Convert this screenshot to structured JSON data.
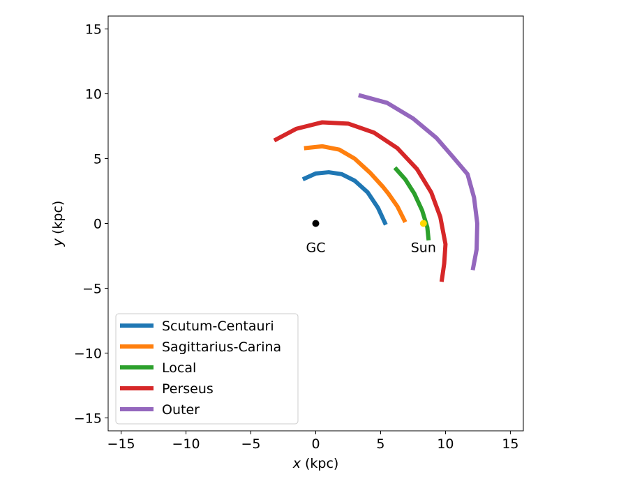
{
  "chart_data": {
    "type": "line",
    "xlabel_var": "x",
    "xlabel_unit": " (kpc)",
    "ylabel_var": "y",
    "ylabel_unit": " (kpc)",
    "xlim": [
      -16,
      16
    ],
    "ylim": [
      -16,
      16
    ],
    "xticks": [
      -15,
      -10,
      -5,
      0,
      5,
      10,
      15
    ],
    "yticks": [
      -15,
      -10,
      -5,
      0,
      5,
      10,
      15
    ],
    "legend_position": "lower-left",
    "series": [
      {
        "name": "Scutum-Centauri",
        "color": "#1f77b4",
        "points": [
          [
            -1.0,
            3.4
          ],
          [
            0.0,
            3.85
          ],
          [
            1.0,
            3.95
          ],
          [
            2.0,
            3.8
          ],
          [
            3.0,
            3.3
          ],
          [
            4.0,
            2.4
          ],
          [
            4.8,
            1.2
          ],
          [
            5.4,
            -0.1
          ]
        ]
      },
      {
        "name": "Sagittarius-Carina",
        "color": "#ff7f0e",
        "points": [
          [
            -0.9,
            5.8
          ],
          [
            0.5,
            5.95
          ],
          [
            1.8,
            5.7
          ],
          [
            3.0,
            5.0
          ],
          [
            4.2,
            3.9
          ],
          [
            5.2,
            2.8
          ],
          [
            5.6,
            2.3
          ],
          [
            6.3,
            1.3
          ],
          [
            6.9,
            0.1
          ]
        ]
      },
      {
        "name": "Local",
        "color": "#2ca02c",
        "points": [
          [
            6.1,
            4.3
          ],
          [
            6.9,
            3.4
          ],
          [
            7.6,
            2.3
          ],
          [
            8.2,
            1.0
          ],
          [
            8.6,
            -0.3
          ],
          [
            8.7,
            -1.3
          ]
        ]
      },
      {
        "name": "Perseus",
        "color": "#d62728",
        "points": [
          [
            -3.2,
            6.4
          ],
          [
            -1.5,
            7.3
          ],
          [
            0.5,
            7.8
          ],
          [
            2.5,
            7.7
          ],
          [
            4.5,
            7.0
          ],
          [
            6.3,
            5.8
          ],
          [
            7.8,
            4.2
          ],
          [
            8.9,
            2.4
          ],
          [
            9.6,
            0.5
          ],
          [
            10.0,
            -1.6
          ],
          [
            9.9,
            -3.1
          ],
          [
            9.7,
            -4.5
          ]
        ]
      },
      {
        "name": "Outer",
        "color": "#9467bd",
        "points": [
          [
            3.3,
            9.9
          ],
          [
            5.5,
            9.3
          ],
          [
            7.5,
            8.1
          ],
          [
            9.3,
            6.6
          ],
          [
            10.6,
            5.1
          ],
          [
            11.7,
            3.8
          ],
          [
            12.2,
            2.0
          ],
          [
            12.45,
            0.0
          ],
          [
            12.4,
            -2.0
          ],
          [
            12.1,
            -3.6
          ]
        ]
      }
    ],
    "markers": [
      {
        "name": "GC",
        "x": 0.0,
        "y": 0.0,
        "color": "#000000",
        "label": "GC"
      },
      {
        "name": "Sun",
        "x": 8.3,
        "y": 0.0,
        "color": "#ffd700",
        "label": "Sun"
      }
    ]
  }
}
